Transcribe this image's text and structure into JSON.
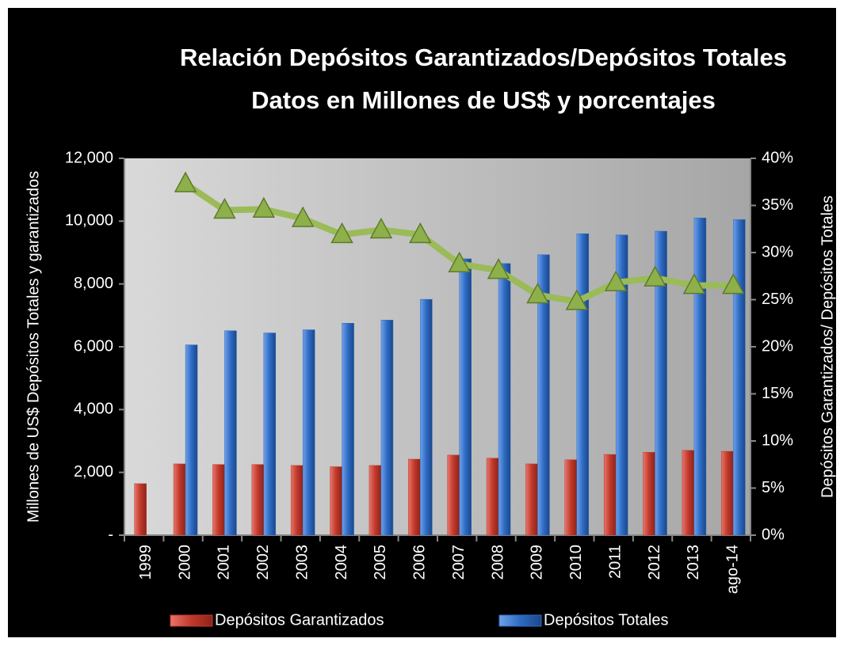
{
  "chart_data": {
    "type": "bar",
    "title": "Relación Depósitos Garantizados/Depósitos Totales",
    "subtitle": "Datos en Millones de US$ y porcentajes",
    "y_label": "Millones de US$ Depósitos Totales y garantizados",
    "y2_label": "Depósitos Garantizados/ Depósitos Totales",
    "categories": [
      "1999",
      "2000",
      "2001",
      "2002",
      "2003",
      "2004",
      "2005",
      "2006",
      "2007",
      "2008",
      "2009",
      "2010",
      "2011",
      "2012",
      "2013",
      "ago-14"
    ],
    "series": [
      {
        "name": "Depósitos Garantizados",
        "color": "#c0392b",
        "values": [
          1640,
          2270,
          2250,
          2250,
          2220,
          2180,
          2220,
          2420,
          2550,
          2450,
          2270,
          2400,
          2570,
          2640,
          2700,
          2670
        ]
      },
      {
        "name": "Depósitos Totales",
        "color": "#2e6bc4",
        "values": [
          null,
          6060,
          6510,
          6440,
          6540,
          6750,
          6850,
          7510,
          8800,
          8650,
          8930,
          9600,
          9560,
          9680,
          10100,
          10050
        ]
      },
      {
        "type": "line",
        "axis": "y2",
        "color": "#9bbb59",
        "values": [
          null,
          37.3,
          34.5,
          34.6,
          33.6,
          31.9,
          32.4,
          31.9,
          28.8,
          28.1,
          25.5,
          24.8,
          26.8,
          27.3,
          26.5,
          26.5
        ]
      }
    ],
    "ylim": [
      0,
      12000
    ],
    "yticks": [
      {
        "value": 0,
        "label": "-"
      },
      {
        "value": 2000,
        "label": "2,000"
      },
      {
        "value": 4000,
        "label": "4,000"
      },
      {
        "value": 6000,
        "label": "6,000"
      },
      {
        "value": 8000,
        "label": "8,000"
      },
      {
        "value": 10000,
        "label": "10,000"
      },
      {
        "value": 12000,
        "label": "12,000"
      }
    ],
    "y2lim": [
      0,
      40
    ],
    "y2ticks": [
      {
        "value": 0,
        "label": "0%"
      },
      {
        "value": 5,
        "label": "5%"
      },
      {
        "value": 10,
        "label": "10%"
      },
      {
        "value": 15,
        "label": "15%"
      },
      {
        "value": 20,
        "label": "20%"
      },
      {
        "value": 25,
        "label": "25%"
      },
      {
        "value": 30,
        "label": "30%"
      },
      {
        "value": 35,
        "label": "35%"
      },
      {
        "value": 40,
        "label": "40%"
      }
    ],
    "legend": "bottom"
  }
}
